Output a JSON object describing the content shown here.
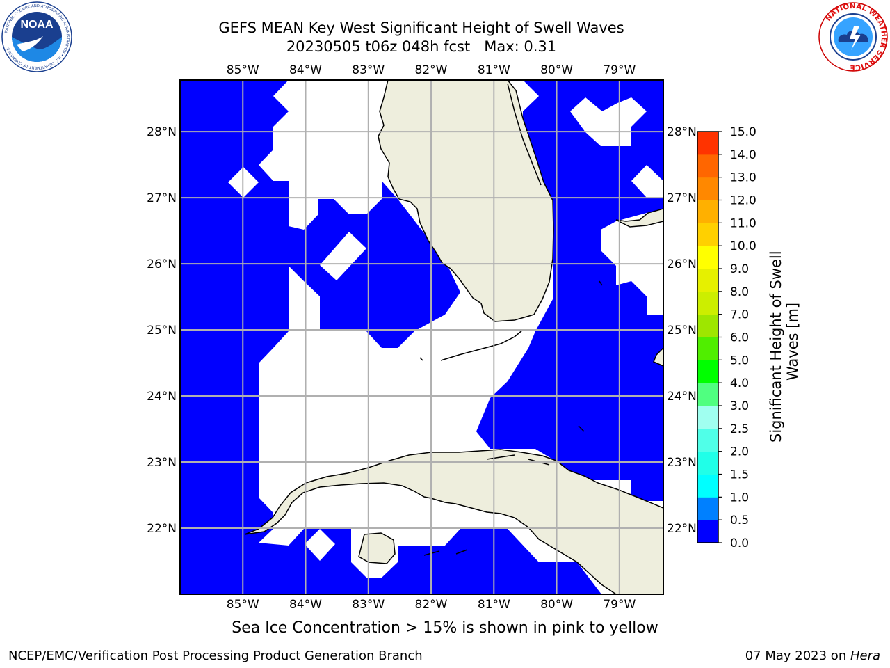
{
  "title": {
    "line1": "GEFS MEAN Key West Significant Height of Swell Waves",
    "line2": "20230505 t06z 048h fcst   Max: 0.31"
  },
  "logos": {
    "left": {
      "name": "noaa-logo",
      "text": "NOAA",
      "ring_text": "NATIONAL OCEANIC AND ATMOSPHERIC ADMINISTRATION • U.S. DEPARTMENT OF COMMERCE"
    },
    "right": {
      "name": "nws-logo",
      "ring_text": "NATIONAL WEATHER SERVICE"
    }
  },
  "map": {
    "lon_labels": [
      "85°W",
      "84°W",
      "83°W",
      "82°W",
      "81°W",
      "80°W",
      "79°W"
    ],
    "lat_labels": [
      "28°N",
      "27°N",
      "26°N",
      "25°N",
      "24°N",
      "23°N",
      "22°N"
    ],
    "lon_extent": [
      -86.0,
      -78.3
    ],
    "lat_extent": [
      21.0,
      28.78
    ],
    "colors": {
      "water_field": "#0000ff",
      "no_data": "#ffffff",
      "land": "#eeeedd",
      "gridline": "#b0b0b0",
      "coastline": "#000000"
    }
  },
  "colorbar": {
    "ticks": [
      "0.0",
      "0.5",
      "1.0",
      "1.5",
      "2.0",
      "2.5",
      "3.0",
      "4.0",
      "5.0",
      "6.0",
      "7.0",
      "8.0",
      "9.0",
      "10.0",
      "11.0",
      "12.0",
      "13.0",
      "14.0",
      "15.0"
    ],
    "colors": [
      "#0000ff",
      "#0080ff",
      "#00ffff",
      "#20ffe8",
      "#50ffe8",
      "#a0fff0",
      "#50ff80",
      "#00ff00",
      "#50ee00",
      "#9ee600",
      "#ccee00",
      "#e6f000",
      "#ffff00",
      "#ffd000",
      "#ffb000",
      "#ff8800",
      "#ff6600",
      "#ff3300",
      "#ff0000"
    ],
    "label": "Significant Height of Swell\nWaves [m]"
  },
  "note": "Sea Ice Concentration > 15% is shown in pink to yellow",
  "footer": {
    "left": "NCEP/EMC/Verification Post Processing Product Generation Branch",
    "right_date": "07 May 2023 on ",
    "right_host": "Hera"
  }
}
